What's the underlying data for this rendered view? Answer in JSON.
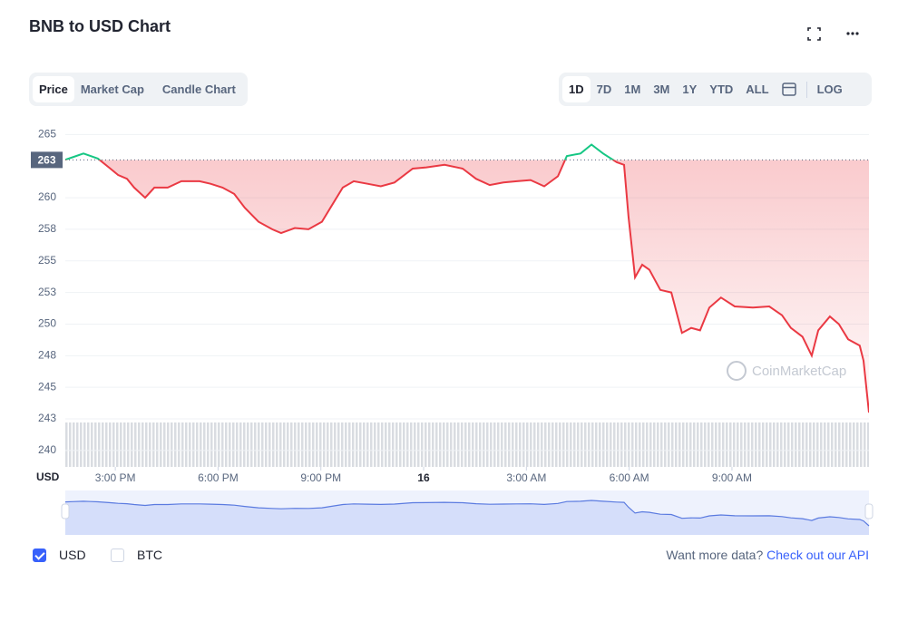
{
  "header": {
    "title": "BNB to USD Chart"
  },
  "tabs": [
    "Price",
    "Market Cap",
    "Candle Chart"
  ],
  "ranges": [
    "1D",
    "7D",
    "1M",
    "3M",
    "1Y",
    "YTD",
    "ALL"
  ],
  "log_button": "LOG",
  "footer": {
    "checkboxes": [
      "USD",
      "BTC"
    ],
    "prompt": "Want more data?",
    "link": "Check out our API"
  },
  "watermark": "CoinMarketCap",
  "chart_data": {
    "type": "line",
    "y_label": "USD",
    "color": "#ea3943",
    "color_above": "#16c784",
    "reference": {
      "value": 262.99,
      "label": "263"
    },
    "x": [
      13.54,
      13.75,
      14.07,
      14.28,
      14.49,
      14.81,
      15.08,
      15.34,
      15.55,
      15.87,
      16.14,
      16.53,
      16.93,
      17.46,
      17.78,
      18.13,
      18.47,
      18.78,
      19.18,
      19.58,
      19.84,
      20.24,
      20.64,
      21.03,
      21.3,
      21.64,
      21.96,
      22.36,
      22.75,
      23.15,
      23.68,
      24.08,
      24.61,
      25.14,
      25.53,
      25.93,
      26.33,
      26.72,
      27.12,
      27.52,
      27.92,
      28.18,
      28.58,
      28.9,
      29.24,
      29.64,
      29.85,
      29.98,
      30.17,
      30.38,
      30.59,
      30.91,
      31.23,
      31.54,
      31.81,
      32.07,
      32.34,
      32.68,
      33.08,
      33.61,
      34.09,
      34.46,
      34.72,
      35.06,
      35.33,
      35.52,
      35.86,
      36.12,
      36.39,
      36.73,
      36.84,
      37.0
    ],
    "values": [
      263.0,
      263.2,
      263.5,
      263.3,
      263.1,
      262.4,
      261.8,
      261.5,
      260.8,
      260.0,
      260.8,
      260.8,
      261.3,
      261.3,
      261.1,
      260.8,
      260.3,
      259.2,
      258.1,
      257.5,
      257.2,
      257.6,
      257.5,
      258.1,
      259.3,
      260.8,
      261.3,
      261.1,
      260.9,
      261.2,
      262.3,
      262.4,
      262.6,
      262.3,
      261.5,
      261.0,
      261.2,
      261.3,
      261.4,
      260.9,
      261.7,
      263.3,
      263.5,
      264.2,
      263.5,
      262.8,
      262.6,
      258.5,
      253.7,
      254.7,
      254.3,
      252.7,
      252.5,
      249.3,
      249.7,
      249.5,
      251.3,
      252.1,
      251.4,
      251.3,
      251.4,
      250.7,
      249.7,
      249.0,
      247.5,
      249.5,
      250.6,
      250.0,
      248.8,
      248.3,
      247.1,
      243.0
    ],
    "xlim": [
      13.54,
      37.0
    ],
    "xticks": [
      {
        "value": 15,
        "label": "3:00 PM"
      },
      {
        "value": 18,
        "label": "6:00 PM"
      },
      {
        "value": 21,
        "label": "9:00 PM"
      },
      {
        "value": 24,
        "label": "16"
      },
      {
        "value": 27,
        "label": "3:00 AM"
      },
      {
        "value": 30,
        "label": "6:00 AM"
      },
      {
        "value": 33,
        "label": "9:00 AM"
      }
    ],
    "ylim": [
      238.7,
      265.6
    ],
    "yticks": [
      240,
      {
        "value": 242.5,
        "label": "243"
      },
      245,
      {
        "value": 247.5,
        "label": "248"
      },
      250,
      {
        "value": 252.5,
        "label": "253"
      },
      255,
      {
        "value": 257.5,
        "label": "258"
      },
      260,
      265
    ],
    "grid": true
  }
}
